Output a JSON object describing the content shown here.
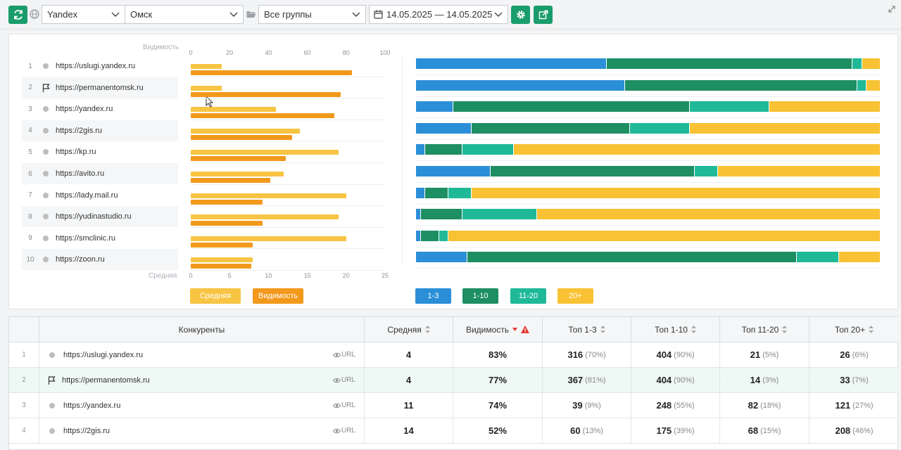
{
  "toolbar": {
    "search_engine": "Yandex",
    "region": "Омск",
    "group": "Все группы",
    "date_range": "14.05.2025 — 14.05.2025"
  },
  "colors": {
    "accent": "#1a9c6d",
    "avg": "#f7c443",
    "visibility": "#f2991c",
    "top3": "#2b8fd8",
    "top10": "#1e8e63",
    "top20": "#1fb998",
    "top20plus": "#f8c234"
  },
  "chart_data": [
    {
      "type": "bar",
      "orientation": "horizontal",
      "categories": [
        "https://uslugi.yandex.ru",
        "https://permanentomsk.ru",
        "https://yandex.ru",
        "https://2gis.ru",
        "https://kp.ru",
        "https://avito.ru",
        "https://lady.mail.ru",
        "https://yudinastudio.ru",
        "https://smclinic.ru",
        "https://zoon.ru"
      ],
      "series": [
        {
          "name": "Средняя",
          "axis": "Средняя",
          "values": [
            4,
            4,
            11,
            14,
            19,
            12,
            20,
            19,
            20,
            8
          ]
        },
        {
          "name": "Видимость",
          "axis": "Видимость",
          "values": [
            83,
            77,
            74,
            52,
            49,
            41,
            37,
            37,
            32,
            31
          ]
        }
      ],
      "top_axis": {
        "label": "Видимость",
        "ticks": [
          "0",
          "20",
          "40",
          "60",
          "80",
          "100"
        ],
        "range": [
          0,
          100
        ]
      },
      "bottom_axis": {
        "label": "Средняя",
        "ticks": [
          "0",
          "5",
          "10",
          "15",
          "20",
          "25"
        ],
        "range": [
          0,
          25
        ]
      },
      "legend": [
        "Средняя",
        "Видимость"
      ],
      "legend_position": "bottom-left"
    },
    {
      "type": "bar",
      "stacked": "percent",
      "categories": [
        "https://uslugi.yandex.ru",
        "https://permanentomsk.ru",
        "https://yandex.ru",
        "https://2gis.ru",
        "https://kp.ru",
        "https://avito.ru",
        "https://lady.mail.ru",
        "https://yudinastudio.ru",
        "https://smclinic.ru",
        "https://zoon.ru"
      ],
      "series": [
        {
          "name": "1-3",
          "values": [
            41,
            45,
            8,
            12,
            2,
            16,
            2,
            1,
            1,
            11
          ]
        },
        {
          "name": "1-10",
          "values": [
            53,
            50,
            51,
            34,
            8,
            44,
            5,
            9,
            4,
            71
          ]
        },
        {
          "name": "11-20",
          "values": [
            2,
            2,
            17,
            13,
            11,
            5,
            5,
            16,
            2,
            9
          ]
        },
        {
          "name": "20+",
          "values": [
            4,
            3,
            24,
            41,
            79,
            35,
            88,
            74,
            93,
            9
          ]
        }
      ],
      "legend": [
        "1-3",
        "1-10",
        "11-20",
        "20+"
      ],
      "legend_position": "bottom-left"
    }
  ],
  "table": {
    "headers": [
      "Конкуренты",
      "Средняя",
      "Видимость",
      "Топ 1-3",
      "Топ 1-10",
      "Топ 11-20",
      "Топ 20+"
    ],
    "url_label": "URL",
    "rows": [
      {
        "n": "1",
        "site": "https://uslugi.yandex.ru",
        "avg": "4",
        "vis": "83%",
        "t3": "316",
        "t3p": "(70%)",
        "t10": "404",
        "t10p": "(90%)",
        "t20": "21",
        "t20p": "(5%)",
        "t20plus": "26",
        "t20plusp": "(6%)"
      },
      {
        "n": "2",
        "site": "https://permanentomsk.ru",
        "avg": "4",
        "vis": "77%",
        "t3": "367",
        "t3p": "(81%)",
        "t10": "404",
        "t10p": "(90%)",
        "t20": "14",
        "t20p": "(3%)",
        "t20plus": "33",
        "t20plusp": "(7%)"
      },
      {
        "n": "3",
        "site": "https://yandex.ru",
        "avg": "11",
        "vis": "74%",
        "t3": "39",
        "t3p": "(9%)",
        "t10": "248",
        "t10p": "(55%)",
        "t20": "82",
        "t20p": "(18%)",
        "t20plus": "121",
        "t20plusp": "(27%)"
      },
      {
        "n": "4",
        "site": "https://2gis.ru",
        "avg": "14",
        "vis": "52%",
        "t3": "60",
        "t3p": "(13%)",
        "t10": "175",
        "t10p": "(39%)",
        "t20": "68",
        "t20p": "(15%)",
        "t20plus": "208",
        "t20plusp": "(46%)"
      }
    ]
  }
}
